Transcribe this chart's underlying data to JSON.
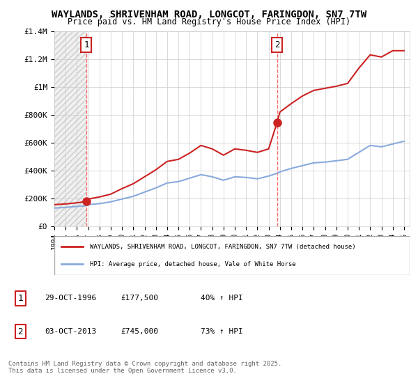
{
  "title": "WAYLANDS, SHRIVENHAM ROAD, LONGCOT, FARINGDON, SN7 7TW",
  "subtitle": "Price paid vs. HM Land Registry's House Price Index (HPI)",
  "legend_entry1": "WAYLANDS, SHRIVENHAM ROAD, LONGCOT, FARINGDON, SN7 7TW (detached house)",
  "legend_entry2": "HPI: Average price, detached house, Vale of White Horse",
  "footnote": "Contains HM Land Registry data © Crown copyright and database right 2025.\nThis data is licensed under the Open Government Licence v3.0.",
  "sale1_label": "1",
  "sale1_date": "29-OCT-1996",
  "sale1_price": "£177,500",
  "sale1_hpi": "40% ↑ HPI",
  "sale2_label": "2",
  "sale2_date": "03-OCT-2013",
  "sale2_price": "£745,000",
  "sale2_hpi": "73% ↑ HPI",
  "sale1_x": 1996.83,
  "sale1_y": 177500,
  "sale2_x": 2013.75,
  "sale2_y": 745000,
  "vline1_x": 1996.83,
  "vline2_x": 2013.75,
  "xmin": 1994,
  "xmax": 2025.5,
  "ymin": 0,
  "ymax": 1400000,
  "red_color": "#cc0000",
  "blue_color": "#6699cc",
  "grid_color": "#cccccc",
  "hatch_color": "#dddddd",
  "background": "#ffffff",
  "hpi_blue_line_color": "#88aadd",
  "property_red_line_color": "#cc2222",
  "hpi_data_x": [
    1994,
    1995,
    1996,
    1996.83,
    1997,
    1998,
    1999,
    2000,
    2001,
    2002,
    2003,
    2004,
    2005,
    2006,
    2007,
    2008,
    2009,
    2010,
    2011,
    2012,
    2013,
    2013.75,
    2014,
    2015,
    2016,
    2017,
    2018,
    2019,
    2020,
    2021,
    2022,
    2023,
    2024,
    2025
  ],
  "hpi_data_y": [
    130000,
    135000,
    142000,
    147000,
    155000,
    162000,
    175000,
    195000,
    215000,
    245000,
    275000,
    310000,
    320000,
    345000,
    370000,
    355000,
    330000,
    355000,
    350000,
    340000,
    360000,
    380000,
    390000,
    415000,
    435000,
    455000,
    460000,
    470000,
    480000,
    530000,
    580000,
    570000,
    590000,
    610000
  ],
  "red_data_x": [
    1994,
    1995,
    1996,
    1996.83,
    1997,
    1998,
    1999,
    2000,
    2001,
    2002,
    2003,
    2004,
    2005,
    2006,
    2007,
    2008,
    2009,
    2010,
    2011,
    2012,
    2013,
    2013.75,
    2014,
    2015,
    2016,
    2017,
    2018,
    2019,
    2020,
    2021,
    2022,
    2023,
    2024,
    2025
  ],
  "red_data_y": [
    155000,
    160000,
    168000,
    177500,
    195000,
    210000,
    230000,
    270000,
    305000,
    355000,
    405000,
    465000,
    480000,
    525000,
    580000,
    555000,
    510000,
    555000,
    545000,
    530000,
    555000,
    745000,
    820000,
    880000,
    935000,
    975000,
    990000,
    1005000,
    1025000,
    1135000,
    1230000,
    1215000,
    1260000,
    1260000
  ],
  "yticks": [
    0,
    200000,
    400000,
    600000,
    800000,
    1000000,
    1200000,
    1400000
  ],
  "ytick_labels": [
    "£0",
    "£200K",
    "£400K",
    "£600K",
    "£800K",
    "£1M",
    "£1.2M",
    "£1.4M"
  ],
  "xticks": [
    1994,
    1995,
    1996,
    1997,
    1998,
    1999,
    2000,
    2001,
    2002,
    2003,
    2004,
    2005,
    2006,
    2007,
    2008,
    2009,
    2010,
    2011,
    2012,
    2013,
    2014,
    2015,
    2016,
    2017,
    2018,
    2019,
    2020,
    2021,
    2022,
    2023,
    2024,
    2025
  ]
}
